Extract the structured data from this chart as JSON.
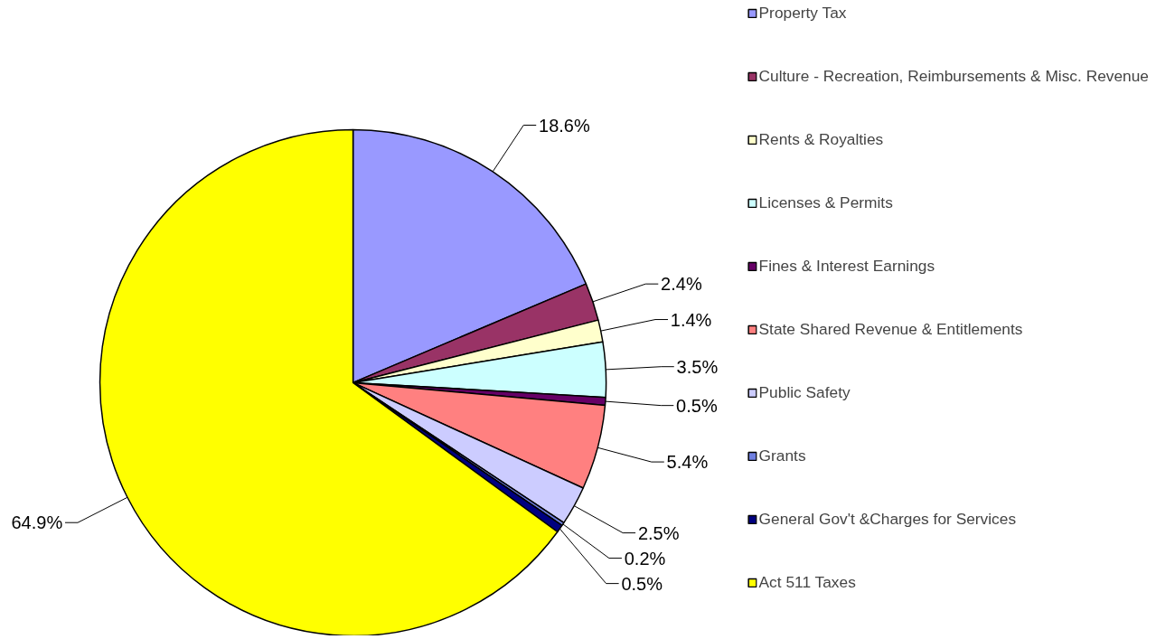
{
  "chart_data": {
    "type": "pie",
    "categories": [
      "Property Tax",
      "Culture - Recreation, Reimbursements & Misc. Revenue",
      "Rents & Royalties",
      "Licenses & Permits",
      "Fines & Interest Earnings",
      "State Shared Revenue & Entitlements",
      "Public Safety",
      "Grants",
      "General Gov't &Charges for Services",
      "Act 511 Taxes"
    ],
    "values": [
      18.6,
      2.4,
      1.4,
      3.5,
      0.5,
      5.4,
      2.5,
      0.2,
      0.5,
      64.9
    ],
    "colors": [
      "#9999ff",
      "#993366",
      "#ffffcc",
      "#ccffff",
      "#660066",
      "#ff8080",
      "#ccccff",
      "#6f7fe0",
      "#000080",
      "#ffff00"
    ],
    "value_labels": [
      "18.6%",
      "2.4%",
      "1.4%",
      "3.5%",
      "0.5%",
      "5.4%",
      "2.5%",
      "0.2%",
      "0.5%",
      "64.9%"
    ],
    "legend": "right"
  }
}
